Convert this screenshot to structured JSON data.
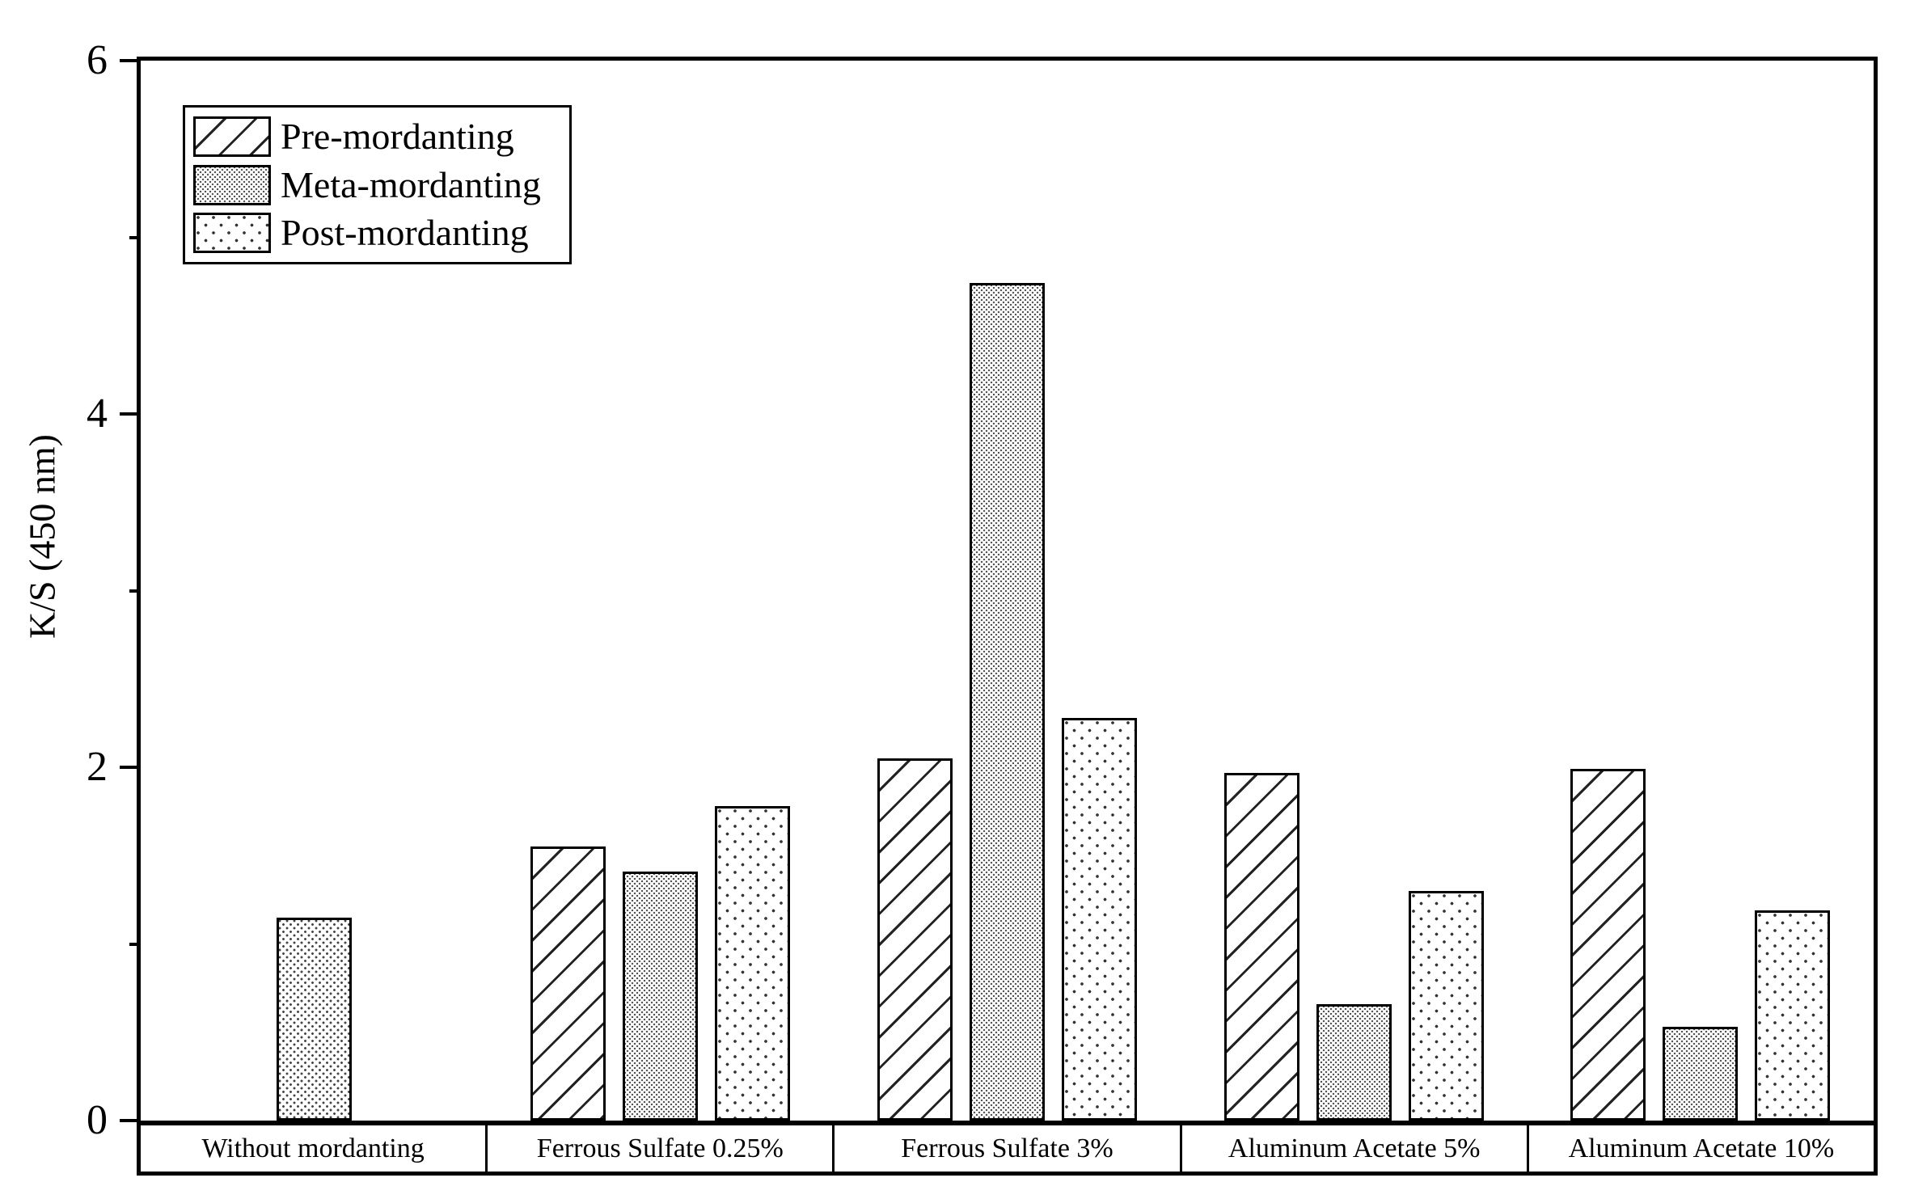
{
  "figure": {
    "background": "#ffffff",
    "ink_color": "#000000"
  },
  "chart_data": {
    "type": "bar",
    "title": "",
    "xlabel": "",
    "ylabel": "K/S (450 nm)",
    "ylim": [
      0,
      6
    ],
    "yticks_major": [
      0,
      2,
      4,
      6
    ],
    "yticks_minor": [
      1,
      3,
      5
    ],
    "grid": false,
    "legend_position": "top-left-inside",
    "categories": [
      "Without mordanting",
      "Ferrous Sulfate 0.25%",
      "Ferrous Sulfate 3%",
      "Aluminum Acetate 5%",
      "Aluminum Acetate 10%"
    ],
    "series": [
      {
        "name": "Pre-mordanting",
        "pattern": "diagonal-hatch",
        "values": [
          null,
          1.55,
          2.05,
          1.97,
          1.99
        ]
      },
      {
        "name": "Meta-mordanting",
        "pattern": "dots-dense",
        "values": [
          null,
          1.41,
          4.74,
          0.66,
          0.53
        ]
      },
      {
        "name": "Post-mordanting",
        "pattern": "dots-sparse",
        "values": [
          null,
          1.78,
          2.28,
          1.3,
          1.19
        ]
      }
    ],
    "control_bar": {
      "category": "Without mordanting",
      "category_index": 0,
      "value": 1.15,
      "pattern": "dots-fine",
      "note": "single unlabeled bar in the Without mordanting group"
    }
  }
}
